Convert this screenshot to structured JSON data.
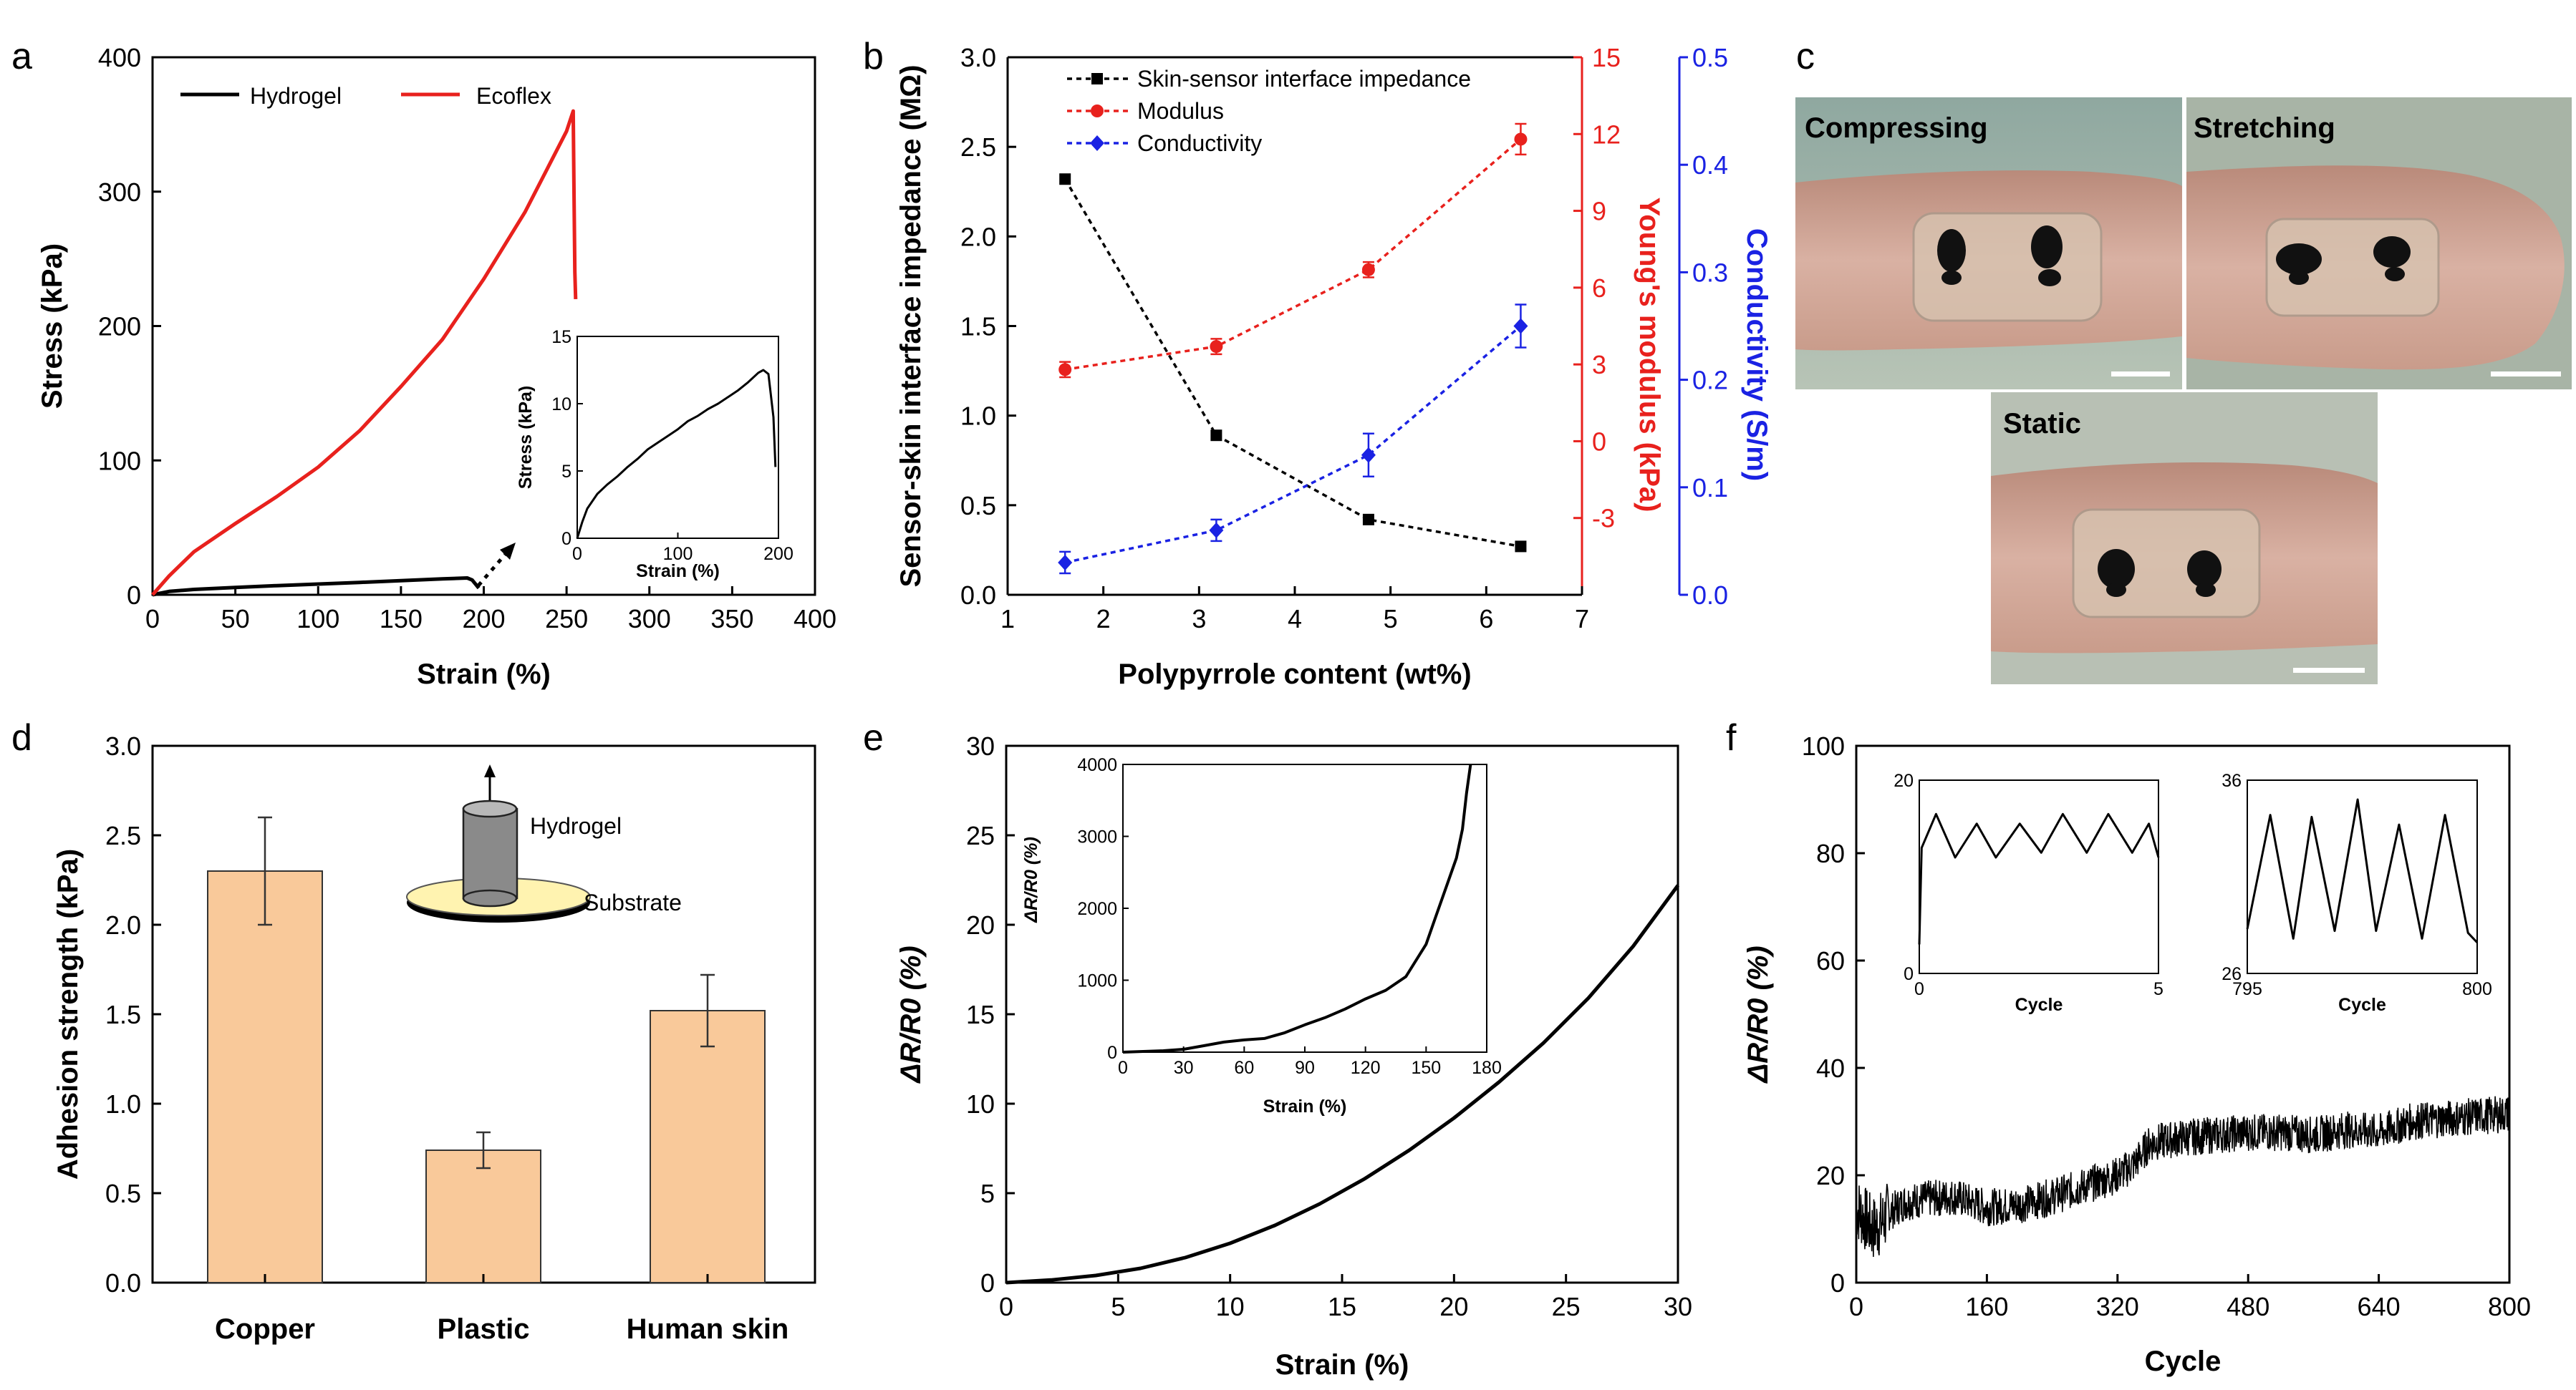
{
  "panels": [
    "a",
    "b",
    "c",
    "d",
    "e",
    "f"
  ],
  "colors": {
    "hydrogel": "#000000",
    "ecoflex": "#e8211d",
    "impedance": "#000000",
    "modulus": "#e8211d",
    "conductivity": "#1a22e3",
    "bar": "#f9c99a",
    "scalebar": "#ffffff"
  },
  "chart_data": [
    {
      "panel": "a",
      "type": "line",
      "xlabel": "Strain (%)",
      "ylabel": "Stress (kPa)",
      "xlim": [
        0,
        400
      ],
      "ylim": [
        0,
        400
      ],
      "xticks": [
        0,
        50,
        100,
        150,
        200,
        250,
        300,
        350,
        400
      ],
      "yticks": [
        0,
        100,
        200,
        300,
        400
      ],
      "legend": {
        "placement": "top-left",
        "entries": [
          "Hydrogel",
          "Ecoflex"
        ]
      },
      "series": [
        {
          "name": "Hydrogel",
          "x": [
            0,
            10,
            25,
            50,
            75,
            100,
            125,
            150,
            175,
            190,
            193,
            197
          ],
          "y": [
            0,
            2.5,
            4,
            5.5,
            6.8,
            8,
            9.2,
            10.5,
            11.8,
            12.5,
            11,
            5
          ]
        },
        {
          "name": "Ecoflex",
          "x": [
            0,
            10,
            25,
            50,
            75,
            100,
            125,
            150,
            175,
            200,
            225,
            250,
            254,
            254.5,
            255,
            255.5
          ],
          "y": [
            0,
            14,
            32,
            53,
            73,
            95,
            122,
            155,
            190,
            235,
            285,
            345,
            360,
            300,
            240,
            220
          ]
        }
      ],
      "inset": {
        "xlabel": "Strain (%)",
        "ylabel": "Stress (kPa)",
        "xlim": [
          0,
          200
        ],
        "ylim": [
          0,
          15
        ],
        "xticks": [
          0,
          100,
          200
        ],
        "yticks": [
          0,
          5,
          10,
          15
        ],
        "series": [
          {
            "x": [
              0,
              5,
              10,
              20,
              30,
              40,
              50,
              60,
              70,
              80,
              90,
              100,
              110,
              120,
              130,
              140,
              150,
              160,
              170,
              180,
              185,
              190,
              195,
              197
            ],
            "y": [
              0,
              1.2,
              2.2,
              3.3,
              4.0,
              4.6,
              5.3,
              5.9,
              6.6,
              7.1,
              7.6,
              8.1,
              8.7,
              9.1,
              9.6,
              10.0,
              10.5,
              11.0,
              11.6,
              12.3,
              12.5,
              12.2,
              9.0,
              5.3
            ]
          }
        ]
      }
    },
    {
      "panel": "b",
      "type": "line",
      "xlabel": "Polypyrrole content (wt%)",
      "ylabel": "Sensor-skin interface impedance (MΩ)",
      "ylabel_right1": "Young's modulus (kPa)",
      "ylabel_right2": "Conductivity (S/m)",
      "xlim": [
        1,
        7
      ],
      "ylim": [
        0,
        3.0
      ],
      "ylim_right1": [
        -6,
        15
      ],
      "ylim_right2": [
        0,
        0.5
      ],
      "xticks": [
        1,
        2,
        3,
        4,
        5,
        6,
        7
      ],
      "yticks": [
        "0.0",
        "0.5",
        "1.0",
        "1.5",
        "2.0",
        "2.5",
        "3.0"
      ],
      "yticks_right1": [
        -3,
        0,
        3,
        6,
        9,
        12,
        15
      ],
      "yticks_right2": [
        "0.0",
        "0.1",
        "0.2",
        "0.3",
        "0.4",
        "0.5"
      ],
      "legend": {
        "placement": "top-left",
        "entries": [
          "Skin-sensor interface impedance",
          "Modulus",
          "Conductivity"
        ]
      },
      "series": [
        {
          "name": "Skin-sensor interface impedance",
          "axis": "left",
          "x": [
            1.6,
            3.18,
            4.77,
            6.36
          ],
          "y": [
            2.32,
            0.89,
            0.42,
            0.27
          ],
          "err": [
            0,
            0,
            0,
            0
          ]
        },
        {
          "name": "Modulus",
          "axis": "right1",
          "x": [
            1.6,
            3.18,
            4.77,
            6.36
          ],
          "y": [
            2.8,
            3.7,
            6.7,
            11.8
          ],
          "err": [
            0.3,
            0.3,
            0.3,
            0.6
          ]
        },
        {
          "name": "Conductivity",
          "axis": "right2",
          "x": [
            1.6,
            3.18,
            4.77,
            6.36
          ],
          "y": [
            0.03,
            0.06,
            0.13,
            0.25
          ],
          "err": [
            0.01,
            0.01,
            0.02,
            0.02
          ]
        }
      ]
    },
    {
      "panel": "d",
      "type": "bar",
      "ylabel": "Adhesion strength (kPa)",
      "ylim": [
        0,
        3.0
      ],
      "yticks": [
        "0.0",
        "0.5",
        "1.0",
        "1.5",
        "2.0",
        "2.5",
        "3.0"
      ],
      "categories": [
        "Copper",
        "Plastic",
        "Human skin"
      ],
      "values": [
        2.3,
        0.74,
        1.52
      ],
      "errors": [
        0.3,
        0.1,
        0.2
      ],
      "inset_labels": {
        "top": "Hydrogel",
        "bottom": "Substrate"
      }
    },
    {
      "panel": "e",
      "type": "line",
      "xlabel": "Strain (%)",
      "ylabel": "ΔR/R0 (%)",
      "xlim": [
        0,
        30
      ],
      "ylim": [
        0,
        30
      ],
      "xticks": [
        0,
        5,
        10,
        15,
        20,
        25,
        30
      ],
      "yticks": [
        0,
        5,
        10,
        15,
        20,
        25,
        30
      ],
      "series": [
        {
          "x": [
            0,
            2,
            4,
            6,
            8,
            10,
            12,
            14,
            16,
            18,
            20,
            22,
            24,
            26,
            28,
            30
          ],
          "y": [
            0,
            0.15,
            0.4,
            0.8,
            1.4,
            2.2,
            3.2,
            4.4,
            5.8,
            7.4,
            9.2,
            11.2,
            13.4,
            15.9,
            18.8,
            22.2
          ]
        }
      ],
      "inset": {
        "xlabel": "Strain (%)",
        "ylabel": "ΔR/R0 (%)",
        "xlim": [
          0,
          180
        ],
        "ylim": [
          0,
          4000
        ],
        "xticks": [
          0,
          30,
          60,
          90,
          120,
          150,
          180
        ],
        "yticks": [
          0,
          1000,
          2000,
          3000,
          4000
        ],
        "series": [
          {
            "x": [
              0,
              10,
              20,
              30,
              40,
              50,
              60,
              70,
              80,
              90,
              100,
              110,
              120,
              130,
              140,
              150,
              155,
              160,
              165,
              168,
              170,
              172
            ],
            "y": [
              0,
              10,
              20,
              40,
              90,
              140,
              170,
              190,
              270,
              380,
              480,
              600,
              740,
              860,
              1050,
              1500,
              1900,
              2300,
              2700,
              3100,
              3600,
              4000
            ]
          }
        ]
      }
    },
    {
      "panel": "f",
      "type": "line",
      "xlabel": "Cycle",
      "ylabel": "ΔR/R0 (%)",
      "xlim": [
        0,
        800
      ],
      "ylim": [
        0,
        100
      ],
      "xticks": [
        0,
        160,
        320,
        480,
        640,
        800
      ],
      "yticks": [
        0,
        20,
        40,
        60,
        80,
        100
      ],
      "series": [
        {
          "x": [
            0,
            10,
            20,
            30,
            40,
            60,
            80,
            120,
            160,
            200,
            240,
            280,
            320,
            340,
            360,
            400,
            440,
            480,
            520,
            560,
            600,
            640,
            680,
            720,
            760,
            800
          ],
          "y": [
            14,
            12,
            10,
            11,
            13,
            15,
            15.5,
            16,
            14,
            14.5,
            16,
            18,
            20,
            22,
            26,
            27,
            27.5,
            28,
            28,
            27.5,
            28.5,
            28,
            30,
            30.5,
            31,
            31.5
          ],
          "noise": 3.5
        }
      ],
      "inset_left": {
        "xlabel": "Cycle",
        "xlim": [
          0,
          5
        ],
        "ylim": [
          0,
          20
        ],
        "xticks": [
          0,
          5
        ],
        "yticks": [
          0,
          20
        ],
        "series": [
          {
            "x": [
              0,
              0.05,
              0.35,
              0.75,
              1.2,
              1.6,
              2.1,
              2.55,
              3.0,
              3.5,
              3.95,
              4.45,
              4.8,
              5.0
            ],
            "y": [
              3,
              13,
              16.5,
              12,
              15.5,
              12,
              15.5,
              12.5,
              16.5,
              12.5,
              16.5,
              12.5,
              15.5,
              12
            ]
          }
        ]
      },
      "inset_right": {
        "xlabel": "Cycle",
        "xlim": [
          795,
          800
        ],
        "ylim": [
          26,
          36
        ],
        "xticks": [
          795,
          800
        ],
        "yticks": [
          26,
          36
        ],
        "series": [
          {
            "x": [
              795,
              795.5,
              796,
              796.4,
              796.9,
              797.4,
              797.8,
              798.3,
              798.8,
              799.3,
              799.8,
              800
            ],
            "y": [
              28.3,
              34.2,
              27.8,
              34.1,
              28.2,
              35.0,
              28.2,
              33.7,
              27.8,
              34.2,
              28.1,
              27.6
            ]
          }
        ]
      }
    }
  ],
  "photos": {
    "compressing": "Compressing",
    "stretching": "Stretching",
    "static": "Static"
  }
}
